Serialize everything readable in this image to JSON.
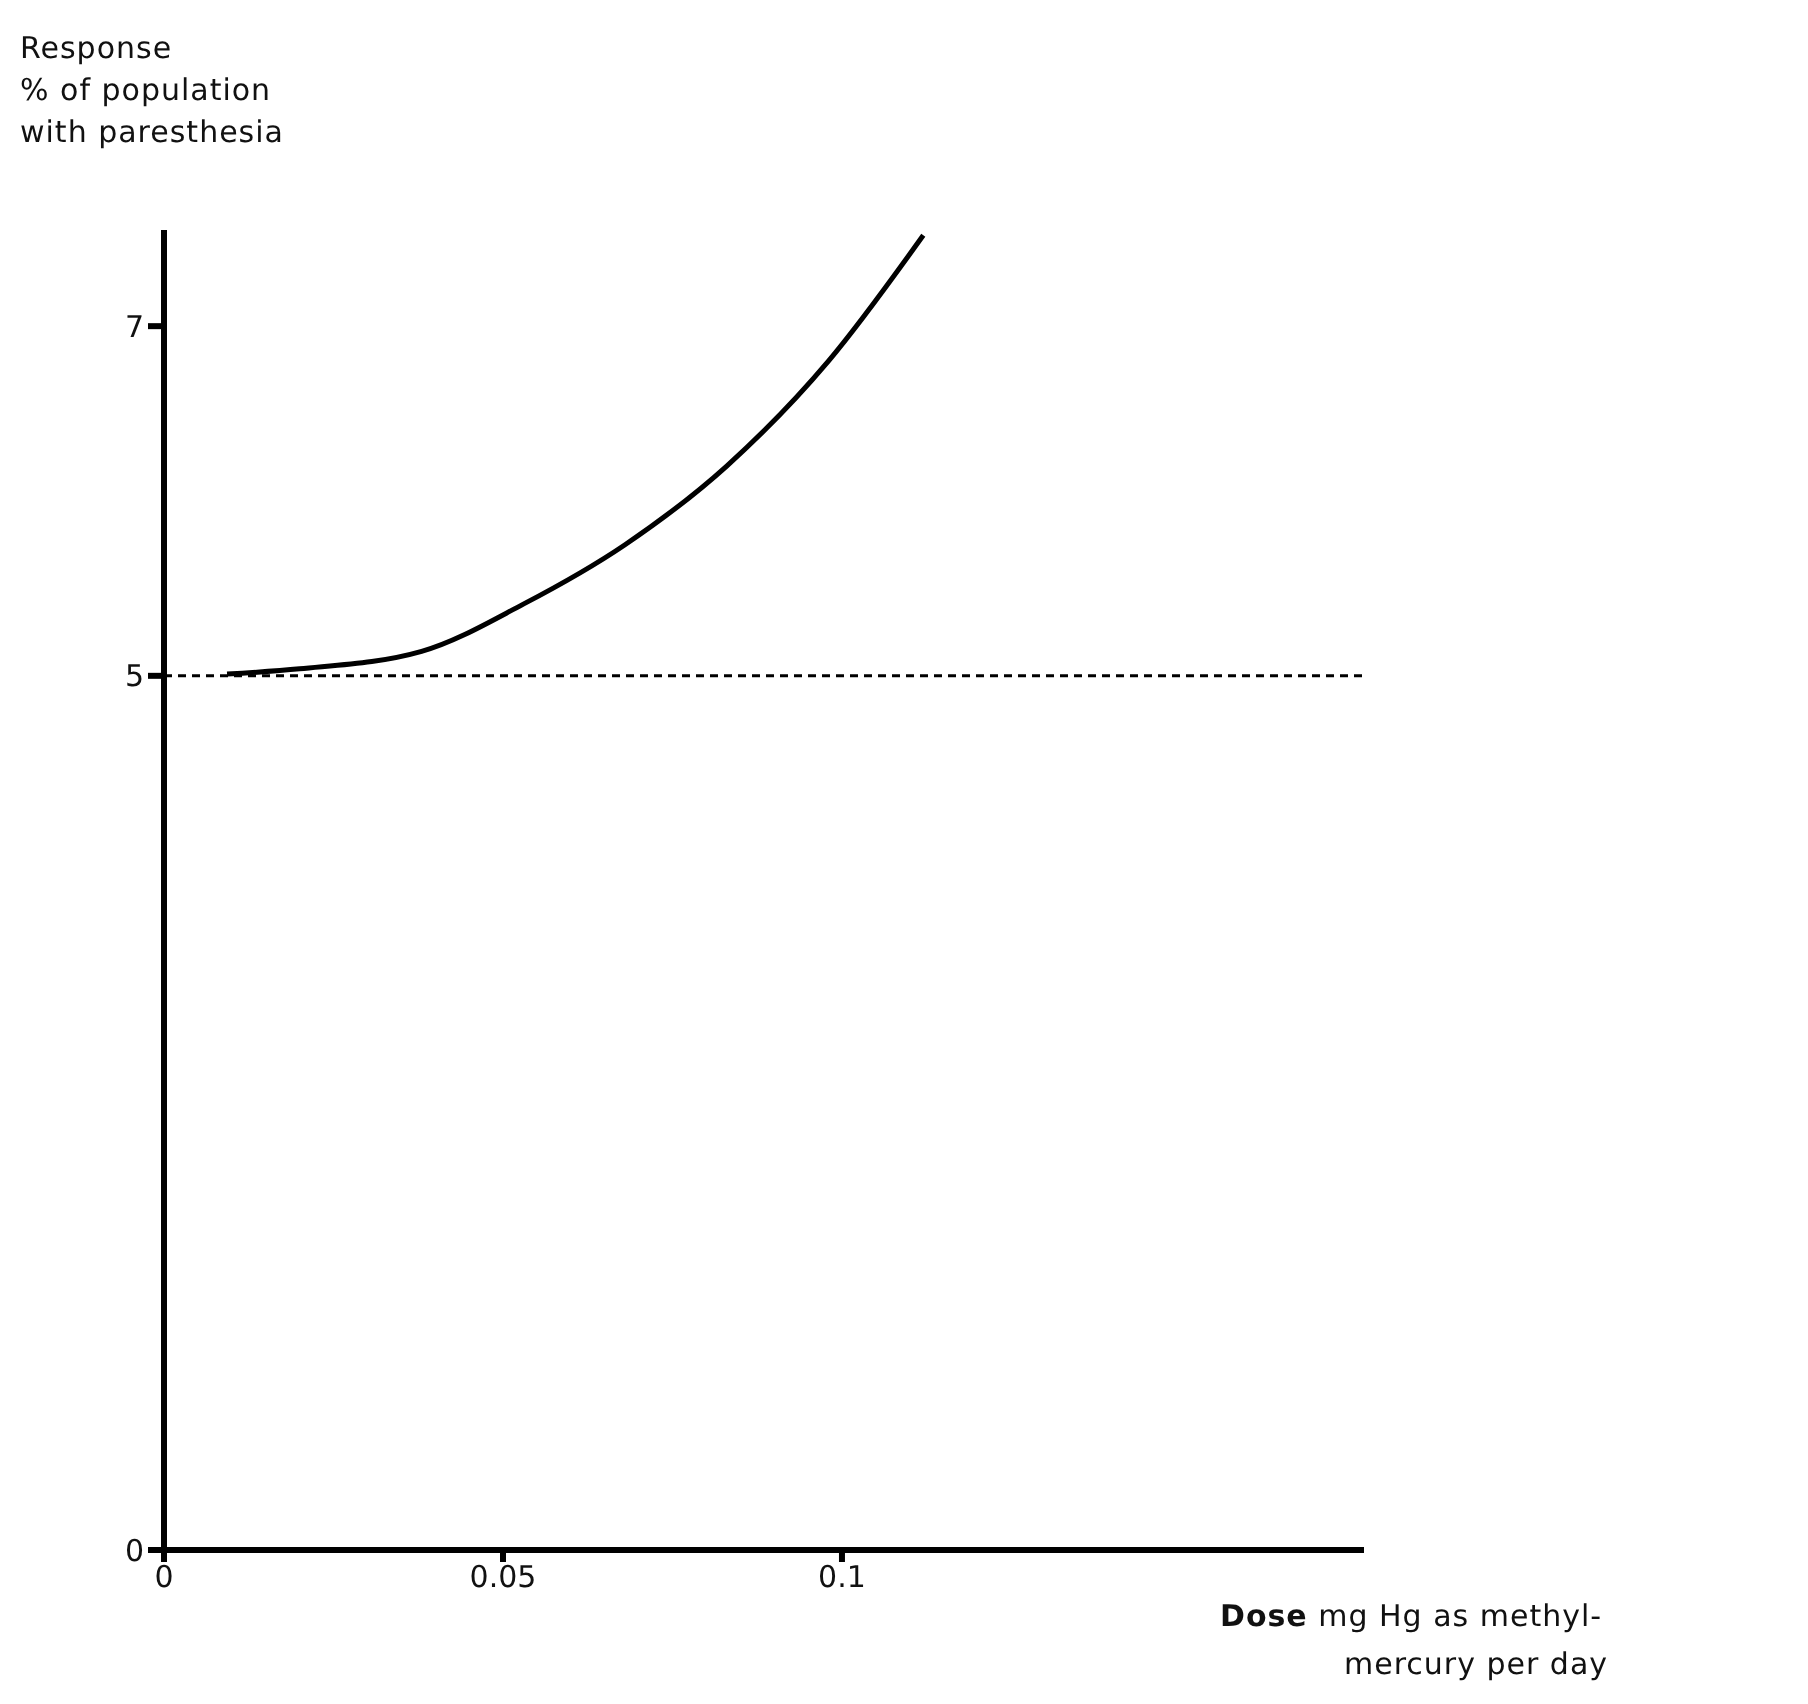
{
  "chart_data": {
    "type": "line",
    "ylabel": "Response\n% of population\nwith paresthesia",
    "xlabel": "Dose mg Hg as methyl-\nmercury per day",
    "x": [
      0.0093,
      0.02,
      0.038,
      0.053,
      0.068,
      0.083,
      0.098,
      0.112
    ],
    "series": [
      {
        "color": "#000000",
        "values": [
          5.01,
          5.04,
          5.14,
          5.41,
          5.75,
          6.2,
          6.8,
          7.52
        ]
      }
    ],
    "xlim": [
      0,
      0.177
    ],
    "xticks": [
      0,
      0.05,
      0.1
    ],
    "ylim": [
      0,
      7.55
    ],
    "yticks": [
      0,
      5,
      7
    ],
    "ref_lines": [
      {
        "axis": "y",
        "value": 5,
        "line_style": "dashed",
        "color": "#000000"
      }
    ],
    "grid": false,
    "legend": false,
    "marker": "none",
    "line_style": "solid"
  }
}
